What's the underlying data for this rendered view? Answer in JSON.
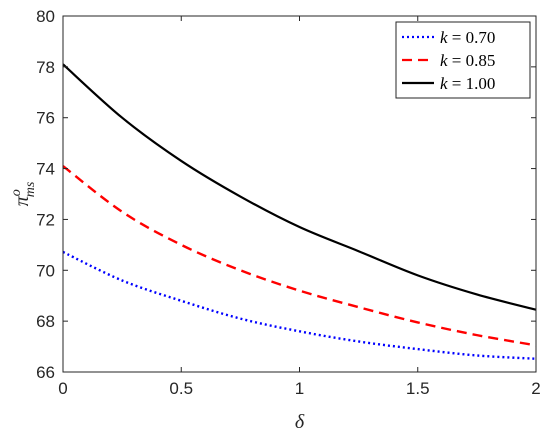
{
  "chart_data": {
    "type": "line",
    "xlabel": "δ",
    "ylabel": "π",
    "ylabel_sup": "o",
    "ylabel_sub": "ms",
    "xlim": [
      0,
      2
    ],
    "ylim": [
      66,
      80
    ],
    "xticks": [
      0,
      0.5,
      1,
      1.5,
      2
    ],
    "xtick_labels": [
      "0",
      "0.5",
      "1",
      "1.5",
      "2"
    ],
    "yticks": [
      66,
      68,
      70,
      72,
      74,
      76,
      78,
      80
    ],
    "ytick_labels": [
      "66",
      "68",
      "70",
      "72",
      "74",
      "76",
      "78",
      "80"
    ],
    "grid": false,
    "legend_position": "top-right",
    "x": [
      0,
      0.25,
      0.5,
      0.75,
      1,
      1.25,
      1.5,
      1.75,
      2
    ],
    "series": [
      {
        "name": "k = 0.70",
        "legend_var": "k",
        "legend_value": "0.70",
        "color": "#0000ff",
        "dash": "dotted",
        "values": [
          70.72,
          69.6,
          68.8,
          68.1,
          67.6,
          67.2,
          66.9,
          66.65,
          66.52
        ]
      },
      {
        "name": "k = 0.85",
        "legend_var": "k",
        "legend_value": "0.85",
        "color": "#ff0000",
        "dash": "dashed",
        "values": [
          74.1,
          72.3,
          71.0,
          70.0,
          69.2,
          68.55,
          67.95,
          67.45,
          67.05
        ]
      },
      {
        "name": "k = 1.00",
        "legend_var": "k",
        "legend_value": "1.00",
        "color": "#000000",
        "dash": "solid",
        "values": [
          78.1,
          76.0,
          74.3,
          72.9,
          71.7,
          70.75,
          69.8,
          69.05,
          68.45
        ]
      }
    ]
  }
}
